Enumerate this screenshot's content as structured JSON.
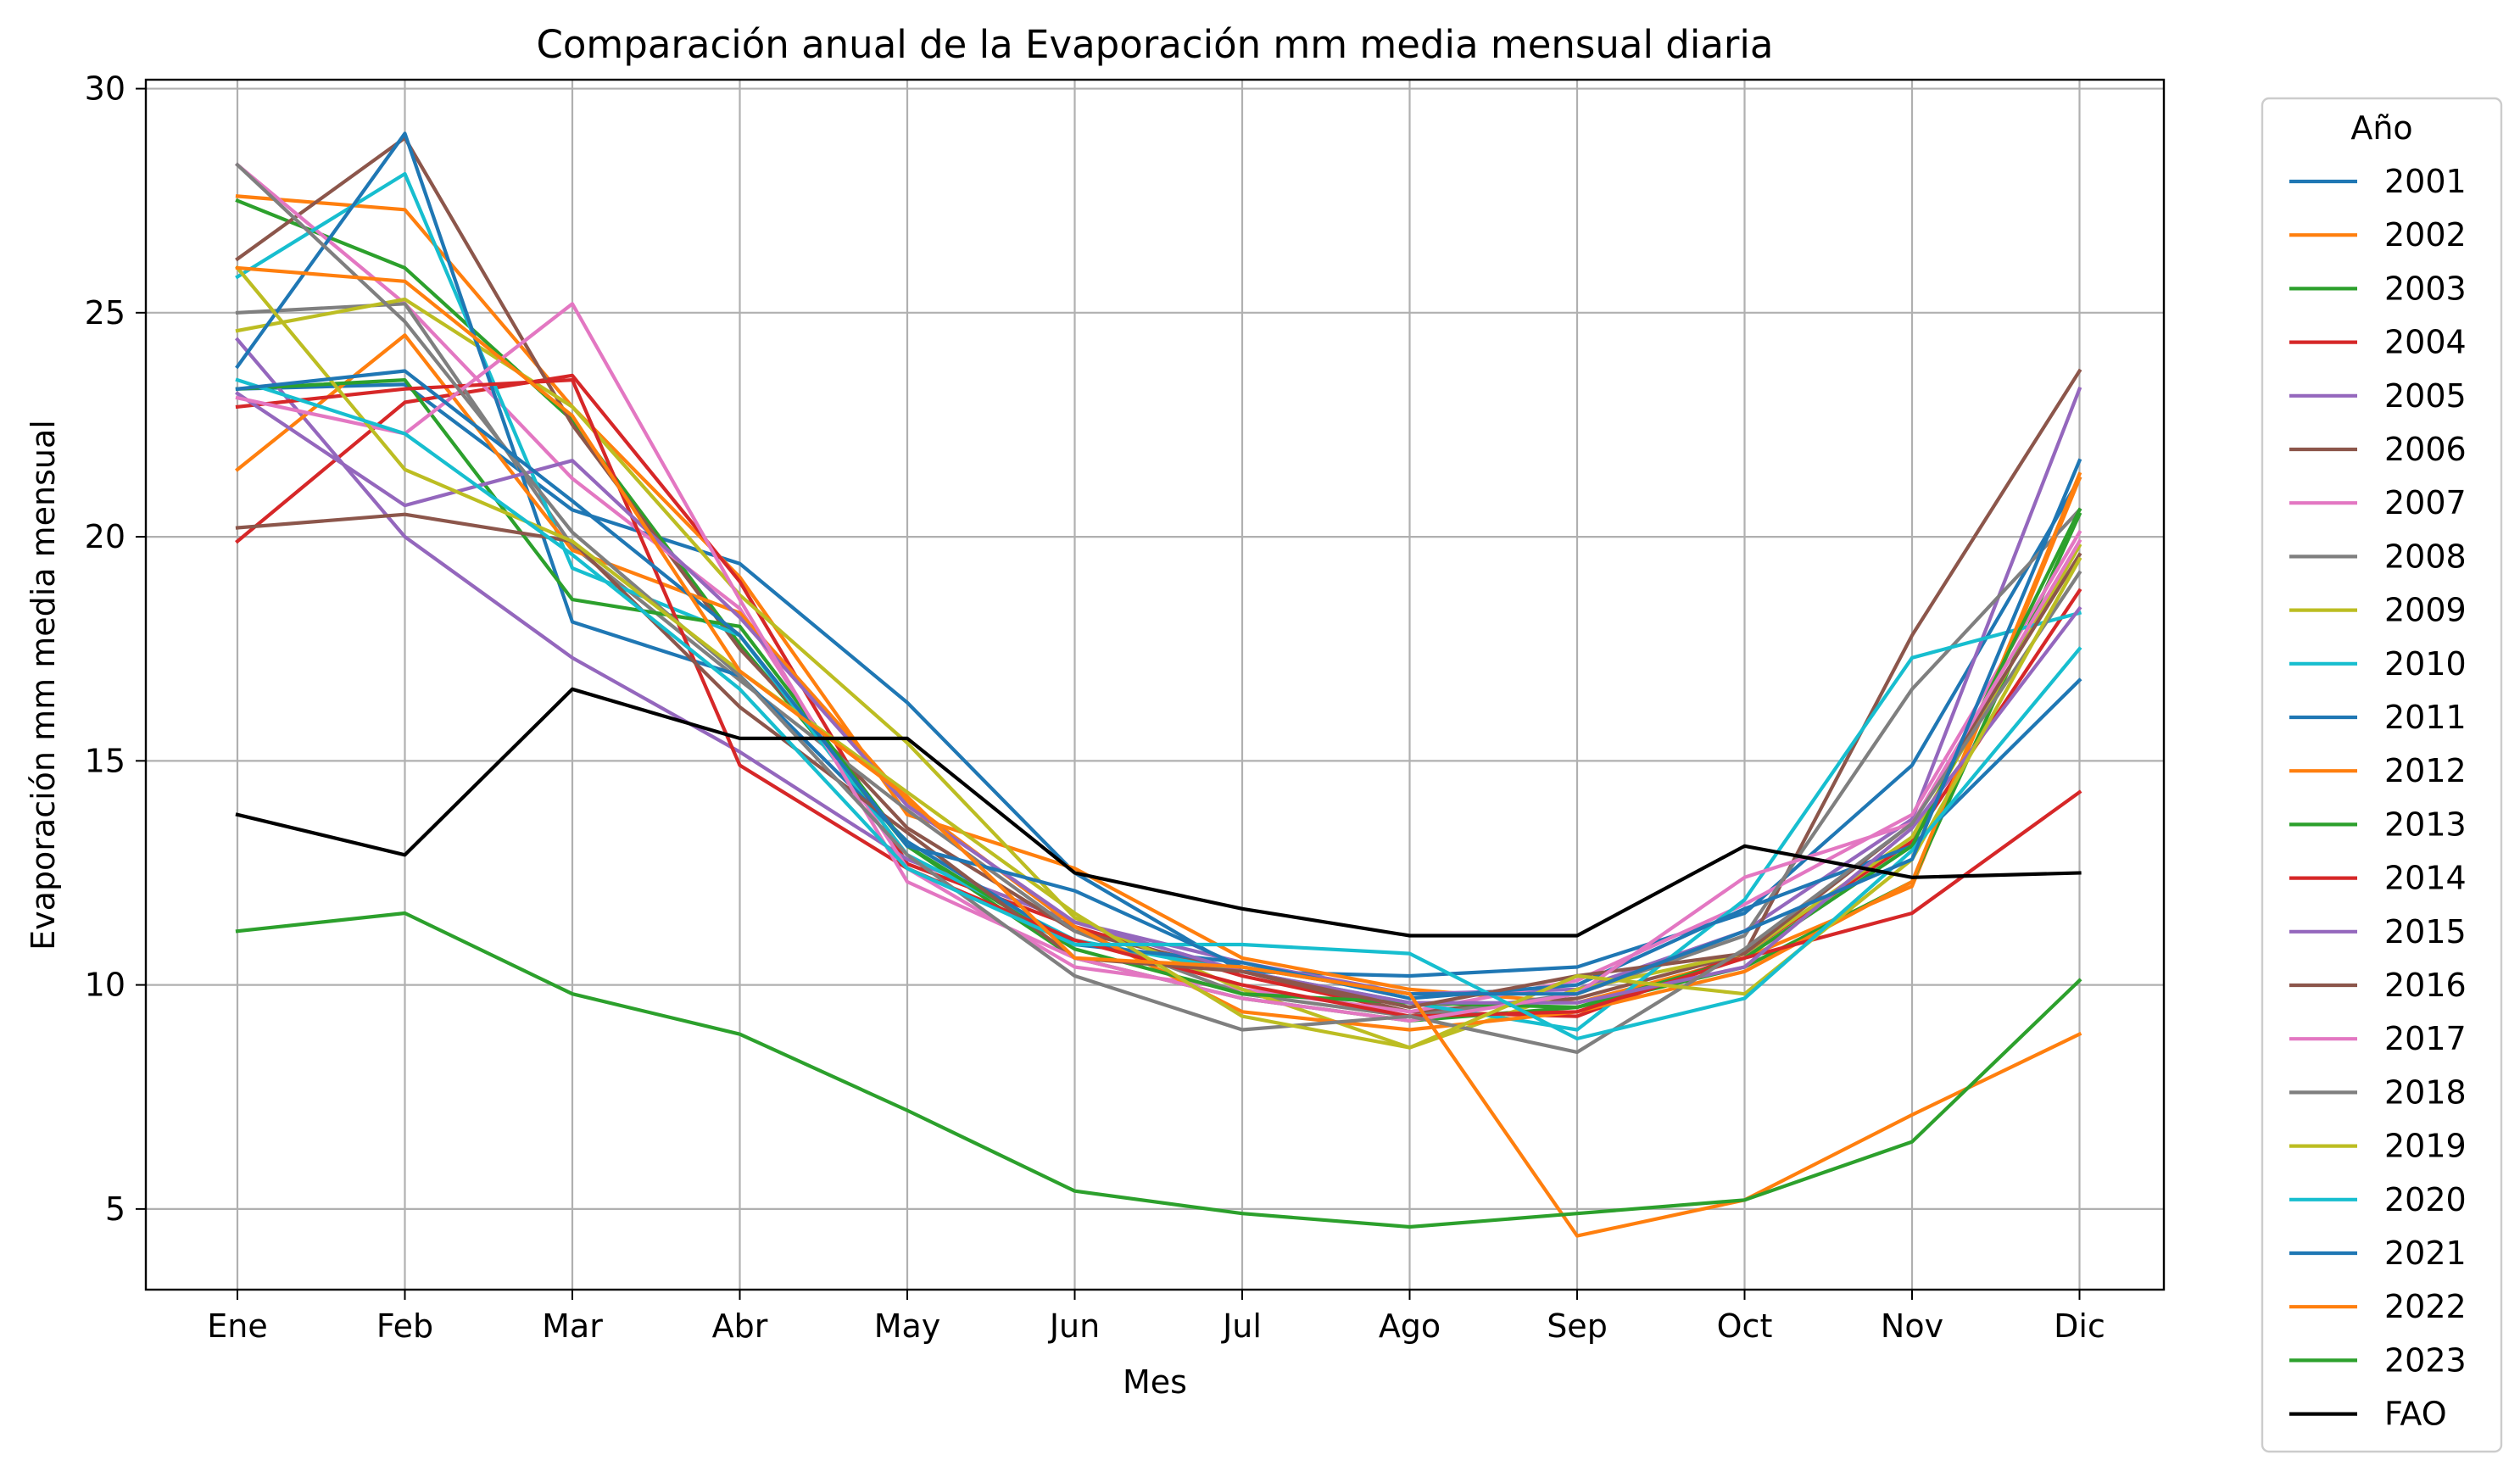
{
  "chart_data": {
    "type": "line",
    "title": "Comparación anual de la Evaporación mm media mensual diaria",
    "xlabel": "Mes",
    "ylabel": "Evaporación mm media mensual",
    "categories": [
      "Ene",
      "Feb",
      "Mar",
      "Abr",
      "May",
      "Jun",
      "Jul",
      "Ago",
      "Sep",
      "Oct",
      "Nov",
      "Dic"
    ],
    "ylim": [
      3.2,
      30.2
    ],
    "yticks": [
      5,
      10,
      15,
      20,
      25,
      30
    ],
    "grid": true,
    "legend_title": "Año",
    "legend_position": "outside right",
    "series": [
      {
        "name": "2001",
        "color": "#1f77b4",
        "values": [
          23.3,
          23.4,
          20.6,
          19.4,
          16.3,
          12.5,
          10.3,
          10.2,
          10.4,
          11.6,
          14.9,
          21.3
        ]
      },
      {
        "name": "2002",
        "color": "#ff7f0e",
        "values": [
          27.6,
          27.3,
          22.9,
          19.1,
          13.8,
          12.6,
          10.6,
          9.9,
          9.6,
          10.6,
          12.2,
          21.3
        ]
      },
      {
        "name": "2003",
        "color": "#2ca02c",
        "values": [
          27.5,
          26.0,
          22.6,
          17.6,
          13.1,
          10.6,
          9.7,
          9.2,
          9.5,
          10.4,
          12.3,
          20.5
        ]
      },
      {
        "name": "2004",
        "color": "#d62728",
        "values": [
          19.9,
          23.0,
          23.6,
          19.0,
          12.7,
          11.3,
          10.2,
          9.4,
          9.3,
          10.7,
          13.2,
          18.8
        ]
      },
      {
        "name": "2005",
        "color": "#9467bd",
        "values": [
          24.4,
          20.0,
          17.3,
          15.2,
          12.8,
          11.4,
          10.5,
          9.8,
          9.9,
          11.2,
          13.7,
          23.3
        ]
      },
      {
        "name": "2006",
        "color": "#8c564b",
        "values": [
          26.2,
          28.9,
          22.5,
          17.5,
          13.5,
          11.2,
          10.3,
          9.4,
          9.7,
          10.7,
          17.8,
          23.7
        ]
      },
      {
        "name": "2007",
        "color": "#e377c2",
        "values": [
          28.3,
          25.2,
          21.3,
          18.4,
          12.6,
          10.4,
          9.9,
          9.4,
          10.1,
          11.8,
          13.8,
          20.1
        ]
      },
      {
        "name": "2008",
        "color": "#7f7f7f",
        "values": [
          25.0,
          25.2,
          19.8,
          16.8,
          13.9,
          11.2,
          9.8,
          9.3,
          9.8,
          11.1,
          16.6,
          20.6
        ]
      },
      {
        "name": "2009",
        "color": "#bcbd22",
        "values": [
          24.6,
          25.3,
          22.9,
          18.7,
          15.4,
          11.5,
          9.9,
          8.6,
          9.9,
          10.7,
          13.3,
          19.8
        ]
      },
      {
        "name": "2010",
        "color": "#17becf",
        "values": [
          25.8,
          28.1,
          19.3,
          17.8,
          12.9,
          11.0,
          10.3,
          9.6,
          9.0,
          11.9,
          17.3,
          18.3
        ]
      },
      {
        "name": "2011",
        "color": "#1f77b4",
        "values": [
          23.8,
          29.0,
          18.1,
          16.9,
          13.2,
          10.9,
          10.5,
          9.7,
          10.0,
          11.7,
          13.1,
          16.8
        ]
      },
      {
        "name": "2012",
        "color": "#ff7f0e",
        "values": [
          21.5,
          24.5,
          19.7,
          18.3,
          14.1,
          11.3,
          9.4,
          9.0,
          9.4,
          10.3,
          12.3,
          21.4
        ]
      },
      {
        "name": "2013",
        "color": "#2ca02c",
        "values": [
          23.3,
          23.5,
          18.6,
          18.0,
          13.1,
          10.8,
          9.8,
          9.6,
          9.5,
          10.6,
          13.1,
          20.6
        ]
      },
      {
        "name": "2014",
        "color": "#d62728",
        "values": [
          22.9,
          23.3,
          23.5,
          14.9,
          12.6,
          11.0,
          10.0,
          9.3,
          9.4,
          10.6,
          11.6,
          14.3
        ]
      },
      {
        "name": "2015",
        "color": "#9467bd",
        "values": [
          23.2,
          20.7,
          21.7,
          18.2,
          14.0,
          11.4,
          10.3,
          9.6,
          9.6,
          10.4,
          13.5,
          18.4
        ]
      },
      {
        "name": "2016",
        "color": "#8c564b",
        "values": [
          20.2,
          20.5,
          19.9,
          16.2,
          13.4,
          10.6,
          10.3,
          9.5,
          10.2,
          10.7,
          13.6,
          19.6
        ]
      },
      {
        "name": "2017",
        "color": "#e377c2",
        "values": [
          23.1,
          22.3,
          25.2,
          18.6,
          12.3,
          10.6,
          9.7,
          9.2,
          9.8,
          12.4,
          13.6,
          19.9
        ]
      },
      {
        "name": "2018",
        "color": "#7f7f7f",
        "values": [
          28.3,
          24.8,
          20.1,
          16.9,
          12.9,
          10.2,
          9.0,
          9.3,
          8.5,
          10.8,
          13.6,
          19.2
        ]
      },
      {
        "name": "2019",
        "color": "#bcbd22",
        "values": [
          26.0,
          21.5,
          19.9,
          17.0,
          14.3,
          11.6,
          9.3,
          8.6,
          10.2,
          9.8,
          12.8,
          19.5
        ]
      },
      {
        "name": "2020",
        "color": "#17becf",
        "values": [
          23.5,
          22.3,
          19.6,
          16.6,
          12.6,
          10.9,
          10.9,
          10.7,
          8.8,
          9.7,
          13.0,
          17.5
        ]
      },
      {
        "name": "2021",
        "color": "#1f77b4",
        "values": [
          23.3,
          23.7,
          20.8,
          17.8,
          13.1,
          12.1,
          10.4,
          9.8,
          9.8,
          11.2,
          12.8,
          21.7
        ]
      },
      {
        "name": "2022",
        "color": "#ff7f0e",
        "values": [
          26.0,
          25.7,
          22.7,
          17.0,
          14.2,
          10.6,
          10.4,
          9.8,
          4.4,
          5.2,
          7.1,
          8.9
        ]
      },
      {
        "name": "2023",
        "color": "#2ca02c",
        "values": [
          11.2,
          11.6,
          9.8,
          8.9,
          7.2,
          5.4,
          4.9,
          4.6,
          4.9,
          5.2,
          6.5,
          10.1
        ]
      },
      {
        "name": "FAO",
        "color": "#000000",
        "values": [
          13.8,
          12.9,
          16.6,
          15.5,
          15.5,
          12.5,
          11.7,
          11.1,
          11.1,
          13.1,
          12.4,
          12.5
        ]
      }
    ]
  }
}
